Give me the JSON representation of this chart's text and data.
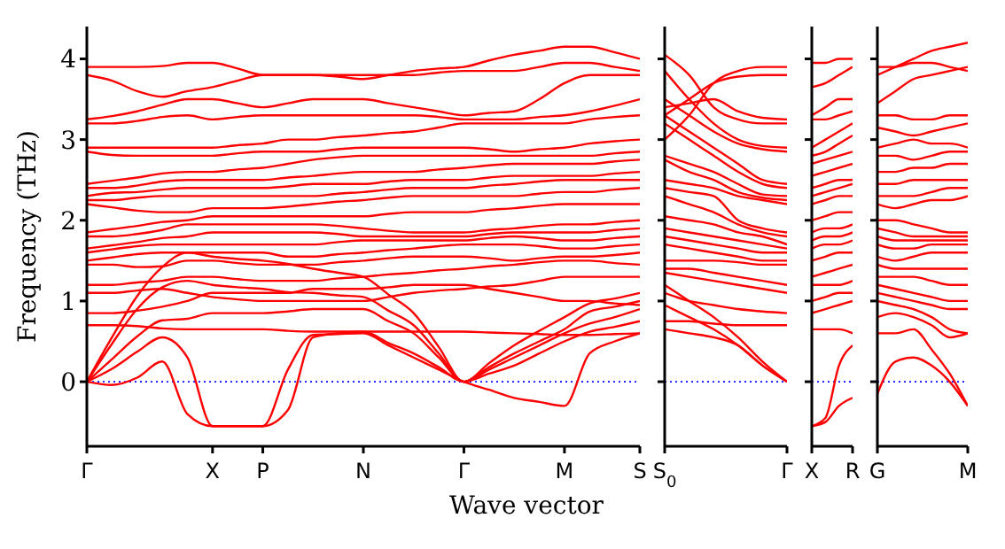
{
  "chart_data": [
    {
      "type": "line",
      "xlabel": "Wave vector",
      "ylabel": "Frequency (THz)",
      "marker": "none",
      "line_style": "solid",
      "categories": [
        "Γ",
        null,
        null,
        null,
        null,
        "X",
        null,
        "P",
        null,
        null,
        null,
        "N",
        null,
        null,
        null,
        "Γ",
        null,
        null,
        null,
        "M",
        null,
        null,
        "S"
      ],
      "ylim": [
        -0.8,
        4.4
      ],
      "yticks": [
        0,
        1,
        2,
        3,
        4
      ],
      "ref_lines": [
        {
          "axis": "y",
          "value": 0,
          "color": "#0000ff",
          "line_style": "dotted"
        }
      ],
      "series": [
        {
          "color": "#ff0000",
          "values": [
            0,
            -0.04,
            0.05,
            0.25,
            -0.4,
            -0.55,
            -0.55,
            -0.55,
            0.15,
            0.58,
            0.59,
            0.6,
            0.45,
            0.3,
            0.15,
            0,
            -0.1,
            -0.2,
            -0.25,
            -0.3,
            0.35,
            0.5,
            0.6
          ]
        },
        {
          "color": "#ff0000",
          "values": [
            0,
            0.16,
            0.37,
            0.55,
            0.3,
            -0.55,
            -0.55,
            -0.55,
            -0.35,
            0.55,
            0.6,
            0.62,
            0.48,
            0.35,
            0.18,
            0,
            0.1,
            0.2,
            0.35,
            0.5,
            0.62,
            0.68,
            0.75
          ]
        },
        {
          "color": "#ff0000",
          "values": [
            0,
            0.28,
            0.56,
            0.76,
            0.78,
            0.85,
            0.85,
            0.85,
            0.87,
            0.9,
            0.9,
            0.9,
            0.75,
            0.6,
            0.3,
            0,
            0.15,
            0.3,
            0.45,
            0.6,
            0.72,
            0.8,
            0.9
          ]
        },
        {
          "color": "#ff0000",
          "values": [
            0,
            0.47,
            0.9,
            1.17,
            1.25,
            1.2,
            1.17,
            1.15,
            1.11,
            1.1,
            1.07,
            1.05,
            0.88,
            0.7,
            0.35,
            0,
            0.18,
            0.35,
            0.5,
            0.65,
            0.87,
            0.93,
            1.0
          ]
        },
        {
          "color": "#ff0000",
          "values": [
            0,
            0.55,
            1.06,
            1.42,
            1.6,
            1.55,
            1.52,
            1.5,
            1.46,
            1.4,
            1.35,
            1.3,
            1.08,
            0.85,
            0.43,
            0,
            0.23,
            0.45,
            0.63,
            0.8,
            0.97,
            1.03,
            1.1
          ]
        },
        {
          "color": "#ff0000",
          "values": [
            0.7,
            0.7,
            0.69,
            0.66,
            0.65,
            0.65,
            0.65,
            0.65,
            0.63,
            0.62,
            0.62,
            0.62,
            0.62,
            0.62,
            0.62,
            0.62,
            0.61,
            0.6,
            0.59,
            0.58,
            0.58,
            0.59,
            0.6
          ]
        },
        {
          "color": "#ff0000",
          "values": [
            0.85,
            0.85,
            0.88,
            0.93,
            1.0,
            1.1,
            1.1,
            1.1,
            1.1,
            1.15,
            1.15,
            1.15,
            1.17,
            1.2,
            1.2,
            1.2,
            1.15,
            1.1,
            1.05,
            1.0,
            1.0,
            0.97,
            0.95
          ]
        },
        {
          "color": "#ff0000",
          "values": [
            1.1,
            1.1,
            1.13,
            1.15,
            1.1,
            1.05,
            1.02,
            1.0,
            1.0,
            1.0,
            1.0,
            1.0,
            1.05,
            1.1,
            1.13,
            1.15,
            1.18,
            1.2,
            1.25,
            1.3,
            1.3,
            1.3,
            1.3
          ]
        },
        {
          "color": "#ff0000",
          "values": [
            1.2,
            1.2,
            1.23,
            1.25,
            1.3,
            1.3,
            1.27,
            1.25,
            1.25,
            1.25,
            1.28,
            1.3,
            1.33,
            1.35,
            1.38,
            1.4,
            1.43,
            1.45,
            1.48,
            1.5,
            1.5,
            1.47,
            1.45
          ]
        },
        {
          "color": "#ff0000",
          "values": [
            1.45,
            1.45,
            1.42,
            1.43,
            1.5,
            1.5,
            1.47,
            1.45,
            1.45,
            1.45,
            1.48,
            1.5,
            1.53,
            1.55,
            1.55,
            1.55,
            1.53,
            1.5,
            1.53,
            1.55,
            1.55,
            1.57,
            1.6
          ]
        },
        {
          "color": "#ff0000",
          "values": [
            1.5,
            1.54,
            1.58,
            1.6,
            1.6,
            1.6,
            1.6,
            1.6,
            1.55,
            1.55,
            1.58,
            1.6,
            1.63,
            1.65,
            1.68,
            1.7,
            1.7,
            1.7,
            1.68,
            1.65,
            1.65,
            1.68,
            1.7
          ]
        },
        {
          "color": "#ff0000",
          "values": [
            1.6,
            1.64,
            1.68,
            1.7,
            1.7,
            1.7,
            1.7,
            1.7,
            1.7,
            1.7,
            1.73,
            1.75,
            1.75,
            1.75,
            1.75,
            1.75,
            1.78,
            1.8,
            1.78,
            1.75,
            1.75,
            1.78,
            1.8
          ]
        },
        {
          "color": "#ff0000",
          "values": [
            1.65,
            1.69,
            1.73,
            1.78,
            1.8,
            1.85,
            1.85,
            1.85,
            1.85,
            1.85,
            1.83,
            1.8,
            1.8,
            1.8,
            1.8,
            1.8,
            1.83,
            1.85,
            1.85,
            1.85,
            1.85,
            1.88,
            1.9
          ]
        },
        {
          "color": "#ff0000",
          "values": [
            1.8,
            1.8,
            1.83,
            1.88,
            1.95,
            1.95,
            1.95,
            1.95,
            1.95,
            1.95,
            1.93,
            1.9,
            1.87,
            1.85,
            1.85,
            1.85,
            1.88,
            1.9,
            1.93,
            1.95,
            1.95,
            1.98,
            2.0
          ]
        },
        {
          "color": "#ff0000",
          "values": [
            1.85,
            1.89,
            1.93,
            1.98,
            2.0,
            2.05,
            2.05,
            2.05,
            2.05,
            2.05,
            2.05,
            2.05,
            2.08,
            2.1,
            2.1,
            2.1,
            2.13,
            2.15,
            2.18,
            2.2,
            2.2,
            2.2,
            2.2
          ]
        },
        {
          "color": "#ff0000",
          "values": [
            2.2,
            2.16,
            2.12,
            2.1,
            2.1,
            2.15,
            2.15,
            2.15,
            2.17,
            2.2,
            2.23,
            2.25,
            2.28,
            2.3,
            2.3,
            2.3,
            2.3,
            2.3,
            2.33,
            2.35,
            2.35,
            2.38,
            2.4
          ]
        },
        {
          "color": "#ff0000",
          "values": [
            2.25,
            2.25,
            2.28,
            2.3,
            2.3,
            2.3,
            2.3,
            2.3,
            2.3,
            2.3,
            2.33,
            2.35,
            2.38,
            2.4,
            2.4,
            2.4,
            2.43,
            2.45,
            2.48,
            2.5,
            2.5,
            2.5,
            2.5
          ]
        },
        {
          "color": "#ff0000",
          "values": [
            2.3,
            2.34,
            2.35,
            2.38,
            2.4,
            2.4,
            2.4,
            2.4,
            2.42,
            2.45,
            2.45,
            2.45,
            2.48,
            2.5,
            2.5,
            2.5,
            2.53,
            2.55,
            2.55,
            2.55,
            2.55,
            2.58,
            2.6
          ]
        },
        {
          "color": "#ff0000",
          "values": [
            2.4,
            2.4,
            2.43,
            2.48,
            2.5,
            2.5,
            2.5,
            2.5,
            2.53,
            2.55,
            2.58,
            2.6,
            2.6,
            2.6,
            2.63,
            2.65,
            2.68,
            2.7,
            2.7,
            2.7,
            2.7,
            2.73,
            2.75
          ]
        },
        {
          "color": "#ff0000",
          "values": [
            2.45,
            2.49,
            2.53,
            2.58,
            2.6,
            2.6,
            2.63,
            2.65,
            2.7,
            2.75,
            2.78,
            2.8,
            2.8,
            2.8,
            2.8,
            2.8,
            2.8,
            2.8,
            2.8,
            2.8,
            2.8,
            2.83,
            2.85
          ]
        },
        {
          "color": "#ff0000",
          "values": [
            2.85,
            2.81,
            2.8,
            2.8,
            2.8,
            2.8,
            2.83,
            2.85,
            2.85,
            2.85,
            2.88,
            2.9,
            2.9,
            2.9,
            2.9,
            2.9,
            2.88,
            2.85,
            2.88,
            2.9,
            2.95,
            2.98,
            3.0
          ]
        },
        {
          "color": "#ff0000",
          "values": [
            2.9,
            2.9,
            2.9,
            2.9,
            2.9,
            2.9,
            2.93,
            2.95,
            3.0,
            3.0,
            3.03,
            3.05,
            3.08,
            3.1,
            3.15,
            3.2,
            3.2,
            3.2,
            3.2,
            3.2,
            3.25,
            3.28,
            3.3
          ]
        },
        {
          "color": "#ff0000",
          "values": [
            3.2,
            3.2,
            3.23,
            3.28,
            3.3,
            3.25,
            3.28,
            3.3,
            3.3,
            3.3,
            3.3,
            3.3,
            3.3,
            3.3,
            3.28,
            3.25,
            3.25,
            3.25,
            3.28,
            3.3,
            3.35,
            3.42,
            3.5
          ]
        },
        {
          "color": "#ff0000",
          "values": [
            3.25,
            3.29,
            3.35,
            3.43,
            3.5,
            3.5,
            3.45,
            3.4,
            3.45,
            3.5,
            3.5,
            3.5,
            3.45,
            3.4,
            3.35,
            3.3,
            3.33,
            3.35,
            3.5,
            3.7,
            3.8,
            3.8,
            3.8
          ]
        },
        {
          "color": "#ff0000",
          "values": [
            3.8,
            3.73,
            3.6,
            3.53,
            3.6,
            3.65,
            3.73,
            3.8,
            3.8,
            3.8,
            3.8,
            3.8,
            3.8,
            3.8,
            3.83,
            3.85,
            3.85,
            3.85,
            3.9,
            3.95,
            3.95,
            3.9,
            3.85
          ]
        },
        {
          "color": "#ff0000",
          "values": [
            3.9,
            3.9,
            3.9,
            3.91,
            3.95,
            3.95,
            3.88,
            3.8,
            3.8,
            3.8,
            3.78,
            3.75,
            3.8,
            3.85,
            3.88,
            3.9,
            3.98,
            4.05,
            4.1,
            4.15,
            4.15,
            4.08,
            4.0
          ]
        }
      ]
    },
    {
      "type": "line",
      "marker": "none",
      "line_style": "solid",
      "tick_labels": "x",
      "categories": [
        "S$_{0}$",
        null,
        null,
        null,
        null,
        "Γ"
      ],
      "ylim": [
        -0.8,
        4.4
      ],
      "yticks": [
        0,
        1,
        2,
        3,
        4
      ],
      "ref_lines": [
        {
          "axis": "y",
          "value": 0,
          "color": "#0000ff",
          "line_style": "dotted"
        }
      ],
      "series": [
        {
          "color": "#ff0000",
          "values": [
            0.65,
            0.6,
            0.55,
            0.45,
            0.2,
            0
          ]
        },
        {
          "color": "#ff0000",
          "values": [
            0.95,
            0.8,
            0.65,
            0.45,
            0.2,
            0
          ]
        },
        {
          "color": "#ff0000",
          "values": [
            1.2,
            1.0,
            0.8,
            0.55,
            0.25,
            0
          ]
        },
        {
          "color": "#ff0000",
          "values": [
            0.75,
            0.75,
            0.72,
            0.7,
            0.7,
            0.7
          ]
        },
        {
          "color": "#ff0000",
          "values": [
            1.1,
            1.0,
            0.95,
            0.9,
            0.87,
            0.85
          ]
        },
        {
          "color": "#ff0000",
          "values": [
            1.35,
            1.3,
            1.25,
            1.2,
            1.15,
            1.1
          ]
        },
        {
          "color": "#ff0000",
          "values": [
            1.4,
            1.4,
            1.35,
            1.3,
            1.25,
            1.2
          ]
        },
        {
          "color": "#ff0000",
          "values": [
            1.5,
            1.5,
            1.5,
            1.48,
            1.45,
            1.45
          ]
        },
        {
          "color": "#ff0000",
          "values": [
            1.7,
            1.65,
            1.6,
            1.55,
            1.5,
            1.5
          ]
        },
        {
          "color": "#ff0000",
          "values": [
            1.8,
            1.75,
            1.7,
            1.65,
            1.6,
            1.6
          ]
        },
        {
          "color": "#ff0000",
          "values": [
            1.9,
            1.85,
            1.8,
            1.75,
            1.7,
            1.65
          ]
        },
        {
          "color": "#ff0000",
          "values": [
            2.05,
            2.0,
            1.95,
            1.85,
            1.8,
            1.7
          ]
        },
        {
          "color": "#ff0000",
          "values": [
            2.3,
            2.2,
            2.1,
            1.95,
            1.85,
            1.8
          ]
        },
        {
          "color": "#ff0000",
          "values": [
            2.4,
            2.35,
            2.3,
            2.0,
            1.9,
            1.85
          ]
        },
        {
          "color": "#ff0000",
          "values": [
            2.5,
            2.45,
            2.4,
            2.3,
            2.25,
            2.2
          ]
        },
        {
          "color": "#ff0000",
          "values": [
            2.75,
            2.6,
            2.5,
            2.35,
            2.28,
            2.25
          ]
        },
        {
          "color": "#ff0000",
          "values": [
            2.8,
            2.7,
            2.6,
            2.45,
            2.32,
            2.3
          ]
        },
        {
          "color": "#ff0000",
          "values": [
            3.2,
            3.0,
            2.8,
            2.6,
            2.45,
            2.4
          ]
        },
        {
          "color": "#ff0000",
          "values": [
            3.3,
            3.1,
            2.9,
            2.7,
            2.5,
            2.45
          ]
        },
        {
          "color": "#ff0000",
          "values": [
            3.5,
            3.3,
            3.1,
            2.95,
            2.88,
            2.85
          ]
        },
        {
          "color": "#ff0000",
          "values": [
            3.85,
            3.5,
            3.2,
            3.0,
            2.92,
            2.9
          ]
        },
        {
          "color": "#ff0000",
          "values": [
            4.05,
            3.8,
            3.4,
            3.25,
            3.2,
            3.2
          ]
        },
        {
          "color": "#ff0000",
          "values": [
            3.4,
            3.45,
            3.5,
            3.35,
            3.27,
            3.25
          ]
        },
        {
          "color": "#ff0000",
          "values": [
            3.3,
            3.5,
            3.7,
            3.78,
            3.8,
            3.8
          ]
        },
        {
          "color": "#ff0000",
          "values": [
            3.0,
            3.3,
            3.7,
            3.85,
            3.9,
            3.9
          ]
        }
      ]
    },
    {
      "type": "line",
      "marker": "none",
      "line_style": "solid",
      "tick_labels": "x",
      "categories": [
        "X",
        null,
        null,
        "R"
      ],
      "ylim": [
        -0.8,
        4.4
      ],
      "yticks": [
        0,
        1,
        2,
        3,
        4
      ],
      "ref_lines": [
        {
          "axis": "y",
          "value": 0,
          "color": "#0000ff",
          "line_style": "dotted"
        }
      ],
      "series": [
        {
          "color": "#ff0000",
          "values": [
            -0.55,
            -0.5,
            -0.3,
            -0.2
          ]
        },
        {
          "color": "#ff0000",
          "values": [
            -0.55,
            -0.45,
            0.2,
            0.45
          ]
        },
        {
          "color": "#ff0000",
          "values": [
            0.65,
            0.65,
            0.65,
            0.6
          ]
        },
        {
          "color": "#ff0000",
          "values": [
            0.85,
            0.9,
            0.95,
            1.0
          ]
        },
        {
          "color": "#ff0000",
          "values": [
            1.0,
            1.05,
            1.1,
            1.1
          ]
        },
        {
          "color": "#ff0000",
          "values": [
            1.2,
            1.2,
            1.2,
            1.25
          ]
        },
        {
          "color": "#ff0000",
          "values": [
            1.3,
            1.35,
            1.4,
            1.45
          ]
        },
        {
          "color": "#ff0000",
          "values": [
            1.5,
            1.55,
            1.6,
            1.6
          ]
        },
        {
          "color": "#ff0000",
          "values": [
            1.65,
            1.7,
            1.7,
            1.75
          ]
        },
        {
          "color": "#ff0000",
          "values": [
            1.75,
            1.8,
            1.8,
            1.85
          ]
        },
        {
          "color": "#ff0000",
          "values": [
            1.85,
            1.9,
            1.9,
            1.95
          ]
        },
        {
          "color": "#ff0000",
          "values": [
            2.0,
            2.05,
            2.1,
            2.1
          ]
        },
        {
          "color": "#ff0000",
          "values": [
            2.2,
            2.25,
            2.3,
            2.3
          ]
        },
        {
          "color": "#ff0000",
          "values": [
            2.3,
            2.35,
            2.4,
            2.45
          ]
        },
        {
          "color": "#ff0000",
          "values": [
            2.4,
            2.45,
            2.5,
            2.5
          ]
        },
        {
          "color": "#ff0000",
          "values": [
            2.55,
            2.6,
            2.65,
            2.7
          ]
        },
        {
          "color": "#ff0000",
          "values": [
            2.7,
            2.75,
            2.8,
            2.85
          ]
        },
        {
          "color": "#ff0000",
          "values": [
            2.8,
            2.85,
            2.95,
            3.05
          ]
        },
        {
          "color": "#ff0000",
          "values": [
            2.9,
            3.0,
            3.1,
            3.2
          ]
        },
        {
          "color": "#ff0000",
          "values": [
            3.25,
            3.25,
            3.3,
            3.35
          ]
        },
        {
          "color": "#ff0000",
          "values": [
            3.3,
            3.4,
            3.5,
            3.5
          ]
        },
        {
          "color": "#ff0000",
          "values": [
            3.65,
            3.7,
            3.8,
            3.9
          ]
        },
        {
          "color": "#ff0000",
          "values": [
            3.95,
            3.95,
            4.0,
            4.0
          ]
        }
      ]
    },
    {
      "type": "line",
      "marker": "none",
      "line_style": "solid",
      "tick_labels": "x",
      "categories": [
        "G",
        null,
        null,
        null,
        null,
        "M"
      ],
      "ylim": [
        -0.8,
        4.4
      ],
      "yticks": [
        0,
        1,
        2,
        3,
        4
      ],
      "ref_lines": [
        {
          "axis": "y",
          "value": 0,
          "color": "#0000ff",
          "line_style": "dotted"
        }
      ],
      "series": [
        {
          "color": "#ff0000",
          "values": [
            -0.15,
            0.25,
            0.3,
            0.2,
            0,
            -0.3
          ]
        },
        {
          "color": "#ff0000",
          "values": [
            0.6,
            0.6,
            0.65,
            0.4,
            0.1,
            -0.3
          ]
        },
        {
          "color": "#ff0000",
          "values": [
            0.8,
            0.85,
            0.8,
            0.7,
            0.55,
            0.6
          ]
        },
        {
          "color": "#ff0000",
          "values": [
            1.0,
            0.95,
            0.9,
            0.8,
            0.65,
            0.6
          ]
        },
        {
          "color": "#ff0000",
          "values": [
            1.1,
            1.05,
            1.0,
            0.95,
            0.9,
            0.9
          ]
        },
        {
          "color": "#ff0000",
          "values": [
            1.2,
            1.15,
            1.1,
            1.05,
            1.0,
            1.0
          ]
        },
        {
          "color": "#ff0000",
          "values": [
            1.3,
            1.3,
            1.3,
            1.25,
            1.2,
            1.2
          ]
        },
        {
          "color": "#ff0000",
          "values": [
            1.45,
            1.4,
            1.4,
            1.4,
            1.4,
            1.4
          ]
        },
        {
          "color": "#ff0000",
          "values": [
            1.55,
            1.5,
            1.55,
            1.6,
            1.6,
            1.6
          ]
        },
        {
          "color": "#ff0000",
          "values": [
            1.7,
            1.65,
            1.65,
            1.7,
            1.7,
            1.7
          ]
        },
        {
          "color": "#ff0000",
          "values": [
            1.8,
            1.75,
            1.75,
            1.75,
            1.75,
            1.75
          ]
        },
        {
          "color": "#ff0000",
          "values": [
            1.9,
            1.85,
            1.8,
            1.8,
            1.8,
            1.8
          ]
        },
        {
          "color": "#ff0000",
          "values": [
            2.0,
            2.0,
            1.95,
            1.9,
            1.85,
            1.85
          ]
        },
        {
          "color": "#ff0000",
          "values": [
            2.2,
            2.15,
            2.2,
            2.25,
            2.25,
            2.3
          ]
        },
        {
          "color": "#ff0000",
          "values": [
            2.3,
            2.3,
            2.3,
            2.35,
            2.4,
            2.4
          ]
        },
        {
          "color": "#ff0000",
          "values": [
            2.45,
            2.45,
            2.5,
            2.5,
            2.5,
            2.5
          ]
        },
        {
          "color": "#ff0000",
          "values": [
            2.6,
            2.6,
            2.65,
            2.65,
            2.7,
            2.7
          ]
        },
        {
          "color": "#ff0000",
          "values": [
            2.8,
            2.8,
            2.75,
            2.8,
            2.85,
            2.85
          ]
        },
        {
          "color": "#ff0000",
          "values": [
            2.9,
            2.95,
            3.0,
            2.95,
            2.95,
            2.9
          ]
        },
        {
          "color": "#ff0000",
          "values": [
            3.15,
            3.1,
            3.05,
            3.1,
            3.15,
            3.2
          ]
        },
        {
          "color": "#ff0000",
          "values": [
            3.3,
            3.3,
            3.25,
            3.25,
            3.3,
            3.3
          ]
        },
        {
          "color": "#ff0000",
          "values": [
            3.45,
            3.6,
            3.75,
            3.8,
            3.85,
            3.9
          ]
        },
        {
          "color": "#ff0000",
          "values": [
            3.8,
            3.9,
            4.0,
            4.1,
            4.15,
            4.2
          ]
        },
        {
          "color": "#ff0000",
          "values": [
            3.9,
            3.9,
            3.95,
            3.95,
            3.9,
            3.85
          ]
        }
      ]
    }
  ]
}
